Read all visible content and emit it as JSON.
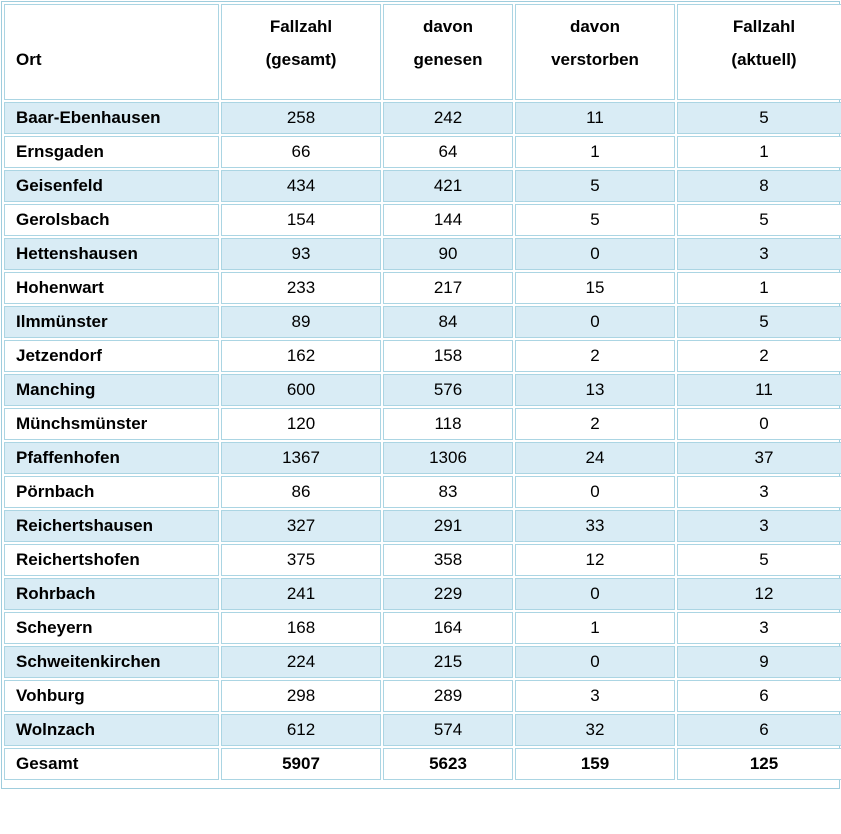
{
  "table": {
    "header": {
      "ort": "Ort",
      "total_line1": "Fallzahl",
      "total_line2": "(gesamt)",
      "recovered_line1": "davon",
      "recovered_line2": "genesen",
      "deceased_line1": "davon",
      "deceased_line2": "verstorben",
      "current_line1": "Fallzahl",
      "current_line2": "(aktuell)"
    },
    "column_keys": [
      "ort",
      "total",
      "recovered",
      "deceased",
      "current"
    ],
    "rows": [
      {
        "ort": "Baar-Ebenhausen",
        "total": "258",
        "recovered": "242",
        "deceased": "11",
        "current": "5"
      },
      {
        "ort": "Ernsgaden",
        "total": "66",
        "recovered": "64",
        "deceased": "1",
        "current": "1"
      },
      {
        "ort": "Geisenfeld",
        "total": "434",
        "recovered": "421",
        "deceased": "5",
        "current": "8"
      },
      {
        "ort": "Gerolsbach",
        "total": "154",
        "recovered": "144",
        "deceased": "5",
        "current": "5"
      },
      {
        "ort": "Hettenshausen",
        "total": "93",
        "recovered": "90",
        "deceased": "0",
        "current": "3"
      },
      {
        "ort": "Hohenwart",
        "total": "233",
        "recovered": "217",
        "deceased": "15",
        "current": "1"
      },
      {
        "ort": "Ilmmünster",
        "total": "89",
        "recovered": "84",
        "deceased": "0",
        "current": "5"
      },
      {
        "ort": "Jetzendorf",
        "total": "162",
        "recovered": "158",
        "deceased": "2",
        "current": "2"
      },
      {
        "ort": "Manching",
        "total": "600",
        "recovered": "576",
        "deceased": "13",
        "current": "11"
      },
      {
        "ort": "Münchsmünster",
        "total": "120",
        "recovered": "118",
        "deceased": "2",
        "current": "0"
      },
      {
        "ort": "Pfaffenhofen",
        "total": "1367",
        "recovered": "1306",
        "deceased": "24",
        "current": "37"
      },
      {
        "ort": "Pörnbach",
        "total": "86",
        "recovered": "83",
        "deceased": "0",
        "current": "3"
      },
      {
        "ort": "Reichertshausen",
        "total": "327",
        "recovered": "291",
        "deceased": "33",
        "current": "3"
      },
      {
        "ort": "Reichertshofen",
        "total": "375",
        "recovered": "358",
        "deceased": "12",
        "current": "5"
      },
      {
        "ort": "Rohrbach",
        "total": "241",
        "recovered": "229",
        "deceased": "0",
        "current": "12"
      },
      {
        "ort": "Scheyern",
        "total": "168",
        "recovered": "164",
        "deceased": "1",
        "current": "3"
      },
      {
        "ort": "Schweitenkirchen",
        "total": "224",
        "recovered": "215",
        "deceased": "0",
        "current": "9"
      },
      {
        "ort": "Vohburg",
        "total": "298",
        "recovered": "289",
        "deceased": "3",
        "current": "6"
      },
      {
        "ort": "Wolnzach",
        "total": "612",
        "recovered": "574",
        "deceased": "32",
        "current": "6"
      }
    ],
    "total_row": {
      "ort": "Gesamt",
      "total": "5907",
      "recovered": "5623",
      "deceased": "159",
      "current": "125"
    }
  },
  "colors": {
    "row_shaded": "#d9ecf5",
    "row_plain": "#ffffff",
    "cell_border": "#abd5e3",
    "outer_frame": "#9fcddd",
    "text": "#000000"
  }
}
